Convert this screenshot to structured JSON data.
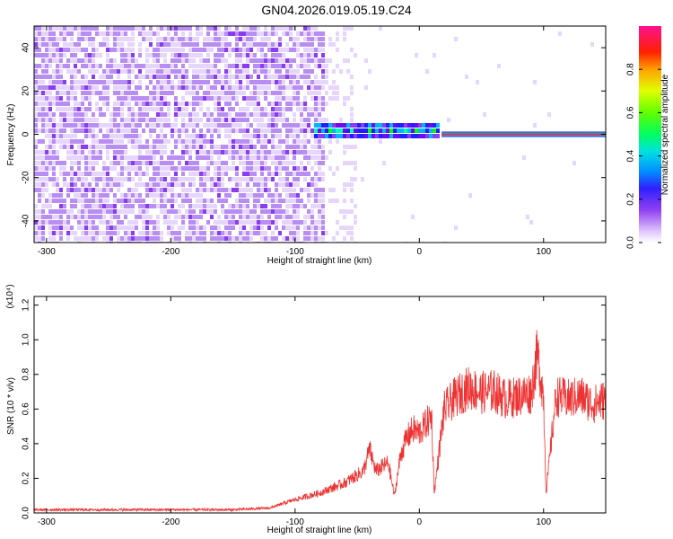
{
  "title": "GN04.2026.019.05.19.C24",
  "colorbar": {
    "label": "Normalized spectral amplitude",
    "ticks": [
      "0.0",
      "0.2",
      "0.4",
      "0.6",
      "0.8"
    ],
    "tick_values": [
      0.0,
      0.2,
      0.4,
      0.6,
      0.8
    ],
    "range": [
      0,
      1
    ]
  },
  "chart_data": [
    {
      "type": "heatmap",
      "name": "spectrogram",
      "xlabel": "Height of straight line (km)",
      "ylabel": "Frequency (Hz)",
      "xlim": [
        -310,
        150
      ],
      "ylim": [
        -50,
        50
      ],
      "xticks": [
        -300,
        -200,
        -100,
        0,
        100
      ],
      "xtick_labels": [
        "-300",
        "-200",
        "-100",
        "0",
        "100"
      ],
      "yticks": [
        -40,
        -20,
        0,
        20,
        40
      ],
      "ytick_labels": [
        "-40",
        "-20",
        "0",
        "20",
        "40"
      ],
      "noise_region_x": [
        -310,
        -50
      ],
      "signal_band": {
        "x_start": -85,
        "x_end": 15,
        "center_hz": 1,
        "half_width_hz": 4
      },
      "tone_line": {
        "x_start": 18,
        "x_end": 150,
        "freq_hz": 0
      },
      "colormap": [
        "#ffffff",
        "#e6d6fb",
        "#b98ef2",
        "#8a3cf0",
        "#6a0cf0",
        "#2020ff",
        "#00b4ff",
        "#00ffb4",
        "#00ff00",
        "#b4ff00",
        "#ffcc00",
        "#ff0000",
        "#ff1090"
      ]
    },
    {
      "type": "line",
      "name": "snr",
      "xlabel": "Height of straight line (km)",
      "ylabel": "SNR (10 * v/v)",
      "scale_label": "(x10⁴)",
      "color": "#ee3333",
      "xlim": [
        -310,
        150
      ],
      "ylim": [
        0,
        1.25
      ],
      "xticks": [
        -300,
        -200,
        -100,
        0,
        100
      ],
      "xtick_labels": [
        "-300",
        "-200",
        "-100",
        "0",
        "100"
      ],
      "yticks": [
        0.0,
        0.2,
        0.4,
        0.6,
        0.8,
        1.0,
        1.2
      ],
      "ytick_labels": [
        "0.0",
        "0.2",
        "0.4",
        "0.6",
        "0.8",
        "1.0",
        "1.2"
      ],
      "series": [
        {
          "name": "SNR",
          "x": [
            -310,
            -250,
            -200,
            -150,
            -120,
            -100,
            -80,
            -60,
            -45,
            -40,
            -35,
            -25,
            -20,
            -15,
            -10,
            -5,
            0,
            10,
            12,
            20,
            30,
            40,
            50,
            60,
            70,
            80,
            90,
            95,
            100,
            102,
            110,
            120,
            130,
            140,
            150
          ],
          "y": [
            0.02,
            0.02,
            0.02,
            0.02,
            0.03,
            0.08,
            0.12,
            0.18,
            0.25,
            0.38,
            0.25,
            0.3,
            0.1,
            0.35,
            0.45,
            0.5,
            0.48,
            0.58,
            0.12,
            0.62,
            0.7,
            0.75,
            0.72,
            0.73,
            0.68,
            0.7,
            0.72,
            0.95,
            0.7,
            0.12,
            0.7,
            0.68,
            0.7,
            0.65,
            0.68
          ]
        }
      ]
    }
  ]
}
